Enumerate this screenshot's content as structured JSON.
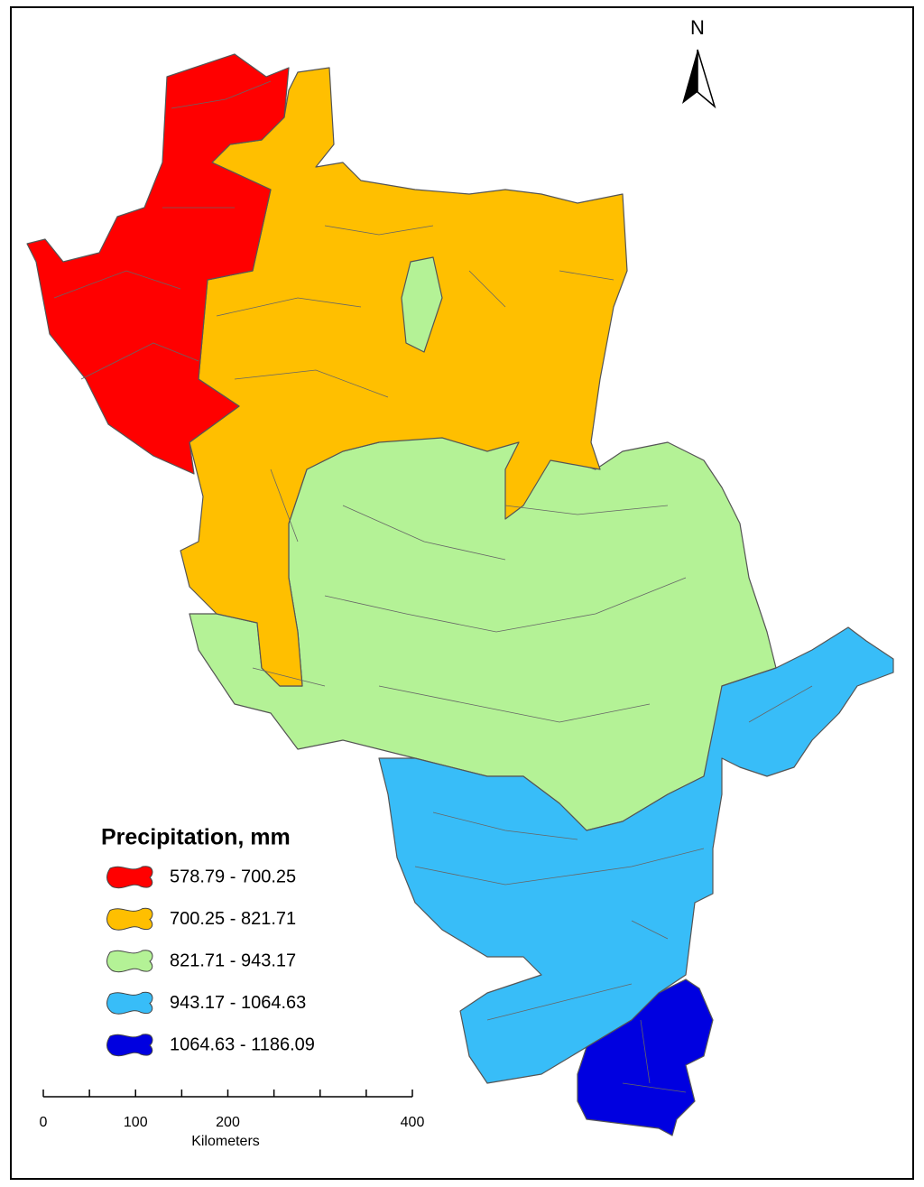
{
  "north_label": "N",
  "legend": {
    "title": "Precipitation, mm",
    "items": [
      {
        "label": "578.79 - 700.25",
        "color": "#ff0000"
      },
      {
        "label": "700.25 - 821.71",
        "color": "#ffbf00"
      },
      {
        "label": "821.71 - 943.17",
        "color": "#b4f296"
      },
      {
        "label": "943.17 - 1064.63",
        "color": "#38bdf8"
      },
      {
        "label": "1064.63 - 1186.09",
        "color": "#0000e0"
      }
    ]
  },
  "scale_bar": {
    "unit": "Kilometers",
    "ticks": [
      0,
      50,
      100,
      150,
      200,
      250,
      300,
      350,
      400
    ],
    "labels": [
      0,
      100,
      200,
      400
    ]
  }
}
